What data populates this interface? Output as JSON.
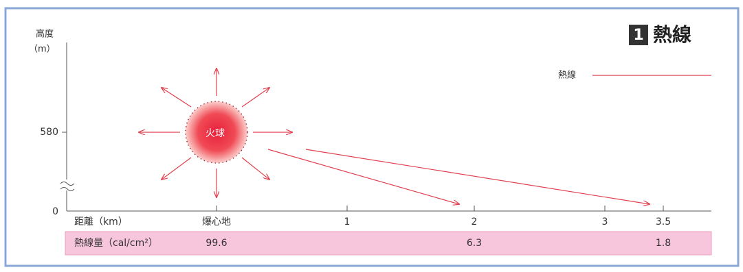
{
  "header": {
    "number": "1",
    "title": "熱線"
  },
  "legend": {
    "label": "熱線"
  },
  "y_axis": {
    "label": "高度",
    "unit": "（m）",
    "ticks": [
      580,
      0
    ]
  },
  "fireball": {
    "label": "火球"
  },
  "x_axis": {
    "label": "距離（km）",
    "ticks": [
      "爆心地",
      1,
      2,
      3,
      3.5
    ]
  },
  "table": {
    "label": "熱線量（cal/cm²）",
    "values": [
      99.6,
      6.3,
      1.8
    ]
  }
}
